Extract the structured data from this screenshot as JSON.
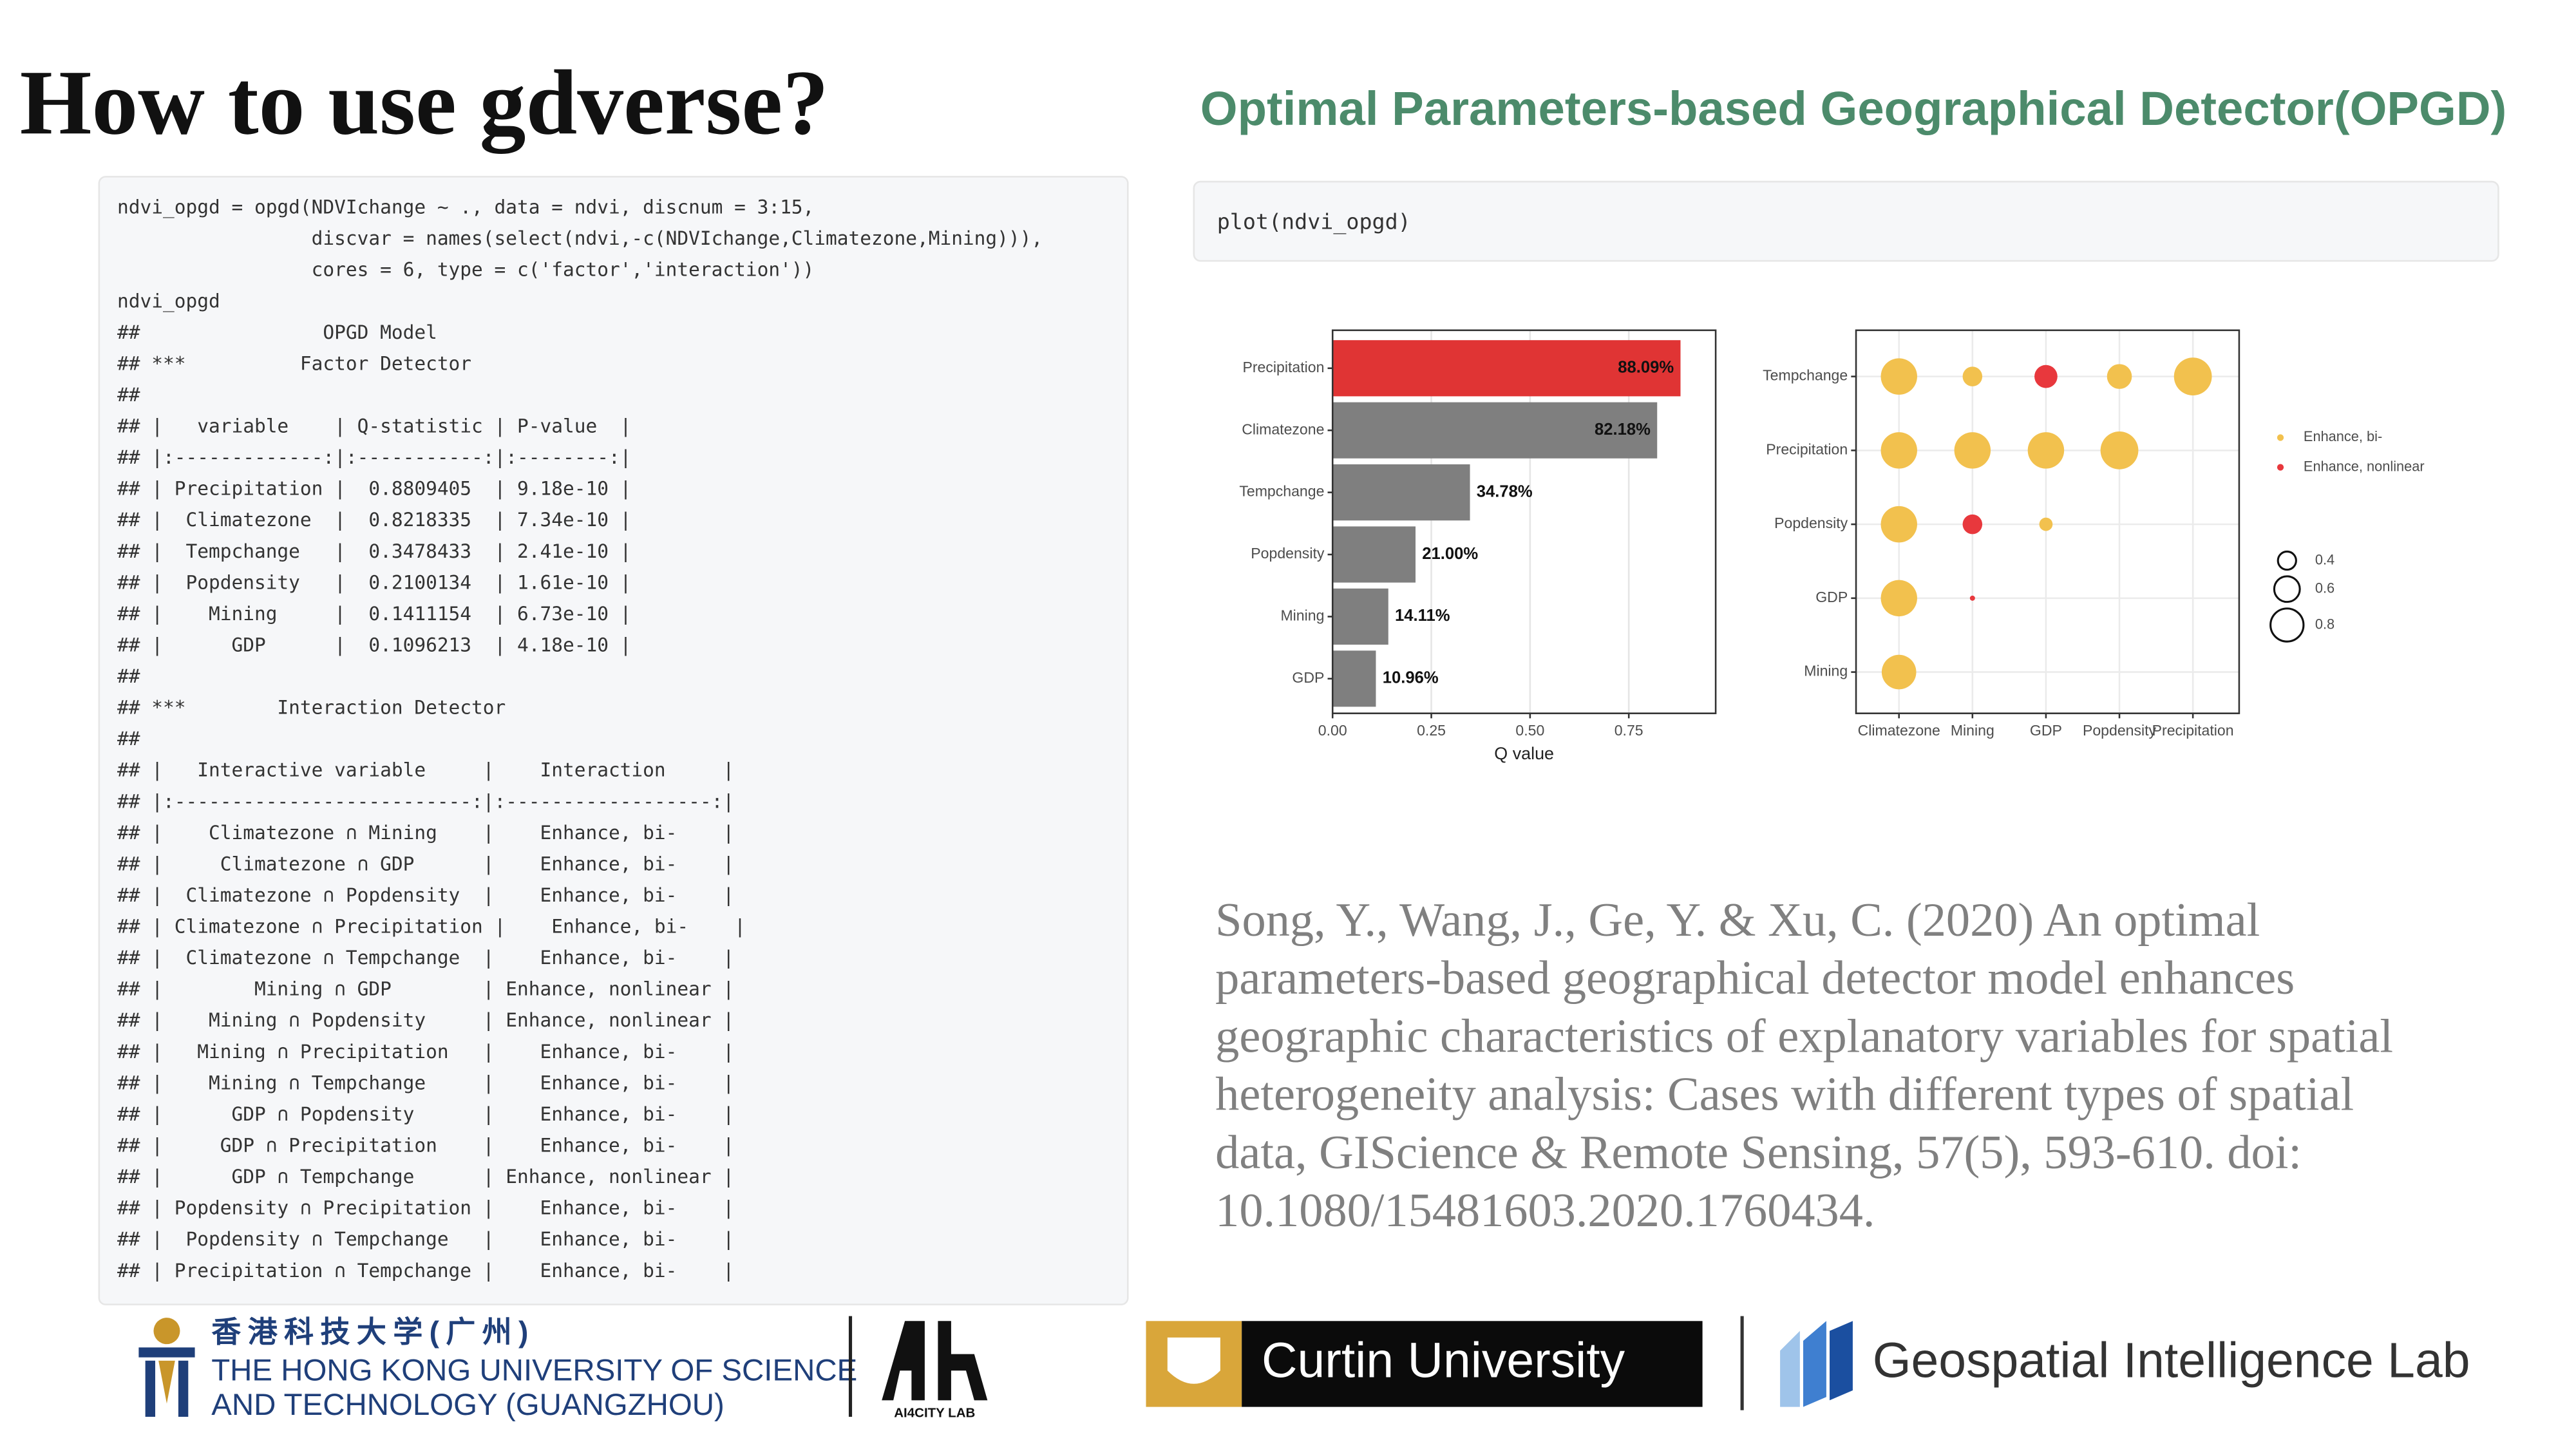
{
  "header": {
    "title": "How to use gdverse?",
    "subtitle": "Optimal Parameters-based Geographical Detector(OPGD)"
  },
  "code": {
    "lines": [
      "ndvi_opgd = opgd(NDVIchange ~ ., data = ndvi, discnum = 3:15,",
      "                 discvar = names(select(ndvi,-c(NDVIchange,Climatezone,Mining))),",
      "                 cores = 6, type = c('factor','interaction'))",
      "ndvi_opgd",
      "##                OPGD Model",
      "## ***          Factor Detector",
      "##",
      "## |   variable    | Q-statistic | P-value  |",
      "## |:-------------:|:-----------:|:--------:|",
      "## | Precipitation |  0.8809405  | 9.18e-10 |",
      "## |  Climatezone  |  0.8218335  | 7.34e-10 |",
      "## |  Tempchange   |  0.3478433  | 2.41e-10 |",
      "## |  Popdensity   |  0.2100134  | 1.61e-10 |",
      "## |    Mining     |  0.1411154  | 6.73e-10 |",
      "## |      GDP      |  0.1096213  | 4.18e-10 |",
      "##",
      "## ***        Interaction Detector",
      "##",
      "## |   Interactive variable     |    Interaction     |",
      "## |:--------------------------:|:------------------:|",
      "## |    Climatezone ∩ Mining    |    Enhance, bi-    |",
      "## |     Climatezone ∩ GDP      |    Enhance, bi-    |",
      "## |  Climatezone ∩ Popdensity  |    Enhance, bi-    |",
      "## | Climatezone ∩ Precipitation |    Enhance, bi-    |",
      "## |  Climatezone ∩ Tempchange  |    Enhance, bi-    |",
      "## |        Mining ∩ GDP        | Enhance, nonlinear |",
      "## |    Mining ∩ Popdensity     | Enhance, nonlinear |",
      "## |   Mining ∩ Precipitation   |    Enhance, bi-    |",
      "## |    Mining ∩ Tempchange     |    Enhance, bi-    |",
      "## |      GDP ∩ Popdensity      |    Enhance, bi-    |",
      "## |     GDP ∩ Precipitation    |    Enhance, bi-    |",
      "## |      GDP ∩ Tempchange      | Enhance, nonlinear |",
      "## | Popdensity ∩ Precipitation |    Enhance, bi-    |",
      "## |  Popdensity ∩ Tempchange   |    Enhance, bi-    |",
      "## | Precipitation ∩ Tempchange |    Enhance, bi-    |"
    ]
  },
  "plot_code": "plot(ndvi_opgd)",
  "chart_data": [
    {
      "type": "bar",
      "orientation": "horizontal",
      "categories": [
        "Precipitation",
        "Climatezone",
        "Tempchange",
        "Popdensity",
        "Mining",
        "GDP"
      ],
      "values": [
        0.8809405,
        0.8218335,
        0.3478433,
        0.2100134,
        0.1411154,
        0.1096213
      ],
      "value_labels": [
        "88.09%",
        "82.18%",
        "34.78%",
        "21.00%",
        "14.11%",
        "10.96%"
      ],
      "colors": [
        "#e03434",
        "#7f7f7f",
        "#7f7f7f",
        "#7f7f7f",
        "#7f7f7f",
        "#7f7f7f"
      ],
      "xlabel": "Q value",
      "xlim": [
        0,
        0.97
      ],
      "xticks": [
        {
          "value": 0,
          "label": "0.00"
        },
        {
          "value": 0.25,
          "label": "0.25"
        },
        {
          "value": 0.5,
          "label": "0.50"
        },
        {
          "value": 0.75,
          "label": "0.75"
        }
      ],
      "grid": true
    },
    {
      "type": "bubble",
      "x_categories": [
        "Climatezone",
        "Mining",
        "GDP",
        "Popdensity",
        "Precipitation"
      ],
      "y_categories": [
        "Tempchange",
        "Precipitation",
        "Popdensity",
        "GDP",
        "Mining"
      ],
      "series": [
        {
          "name": "Enhance, bi-",
          "color": "#f2c14e",
          "x": [
            "Climatezone",
            "Mining",
            "Popdensity",
            "Precipitation",
            "Climatezone",
            "Mining",
            "GDP",
            "Popdensity",
            "Climatezone",
            "GDP",
            "Climatezone",
            "Climatezone"
          ],
          "y": [
            "Tempchange",
            "Tempchange",
            "Tempchange",
            "Tempchange",
            "Precipitation",
            "Precipitation",
            "Precipitation",
            "Precipitation",
            "Popdensity",
            "Popdensity",
            "GDP",
            "Mining"
          ],
          "sizes": [
            0.89,
            0.44,
            0.58,
            0.93,
            0.89,
            0.89,
            0.89,
            0.93,
            0.89,
            0.27,
            0.89,
            0.84
          ]
        },
        {
          "name": "Enhance, nonlinear",
          "color": "#e8383d",
          "x": [
            "GDP",
            "Mining",
            "Mining"
          ],
          "y": [
            "Tempchange",
            "Popdensity",
            "GDP"
          ],
          "sizes": [
            0.53,
            0.44,
            0.05
          ]
        }
      ],
      "size_legend": [
        0.4,
        0.6,
        0.8
      ],
      "grid": true
    }
  ],
  "citation": {
    "lines": [
      "Song, Y., Wang, J., Ge, Y. & Xu, C. (2020) An optimal",
      "parameters-based geographical detector model enhances",
      "geographic characteristics of explanatory variables for spatial",
      "heterogeneity analysis: Cases with different types of spatial",
      "data, GIScience & Remote Sensing, 57(5), 593-610. doi:",
      "10.1080/15481603.2020.1760434."
    ]
  },
  "logos": {
    "hkust_cn": "香港科技大学(广州)",
    "hkust_en_1": "THE HONG KONG UNIVERSITY OF SCIENCE",
    "hkust_en_2": "AND TECHNOLOGY (GUANGZHOU)",
    "ai4city": "AI4CITY LAB",
    "curtin": "Curtin University",
    "gil": "Geospatial Intelligence Lab"
  }
}
